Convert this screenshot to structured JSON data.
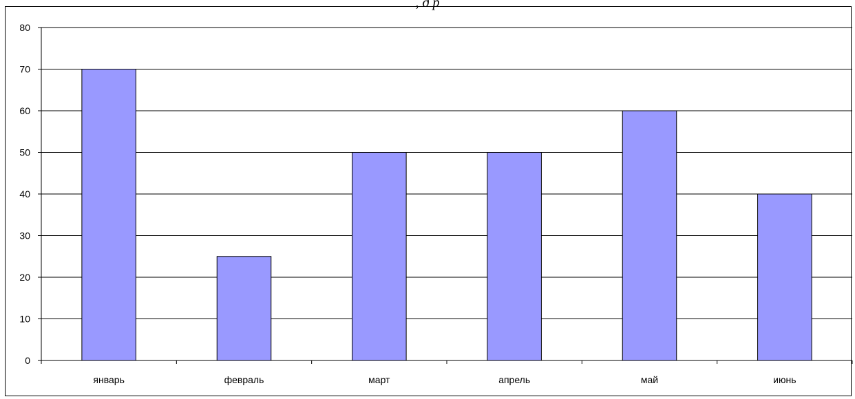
{
  "top_fragment": ", д  р",
  "chart_data": {
    "type": "bar",
    "categories": [
      "январь",
      "февраль",
      "март",
      "апрель",
      "май",
      "июнь"
    ],
    "values": [
      70,
      25,
      50,
      50,
      60,
      40
    ],
    "ylim": [
      0,
      80
    ],
    "yticks": [
      0,
      10,
      20,
      30,
      40,
      50,
      60,
      70,
      80
    ],
    "grid": true,
    "bar_color": "#9999FF",
    "bar_edge_color": "#000000"
  }
}
